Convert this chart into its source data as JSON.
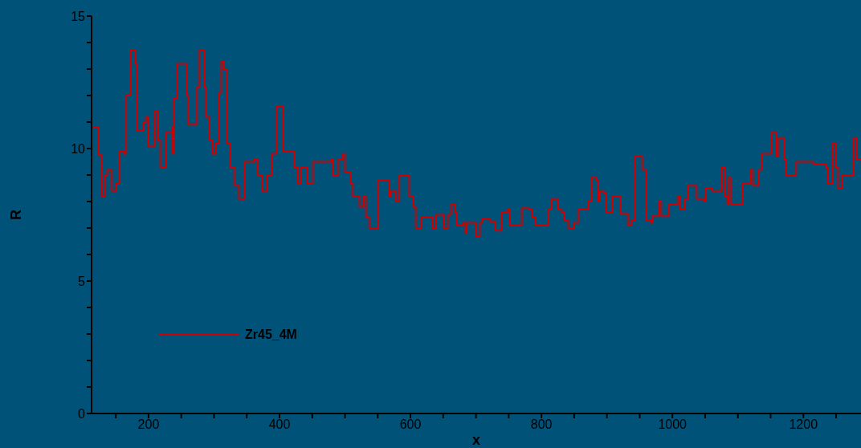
{
  "chart_data": {
    "type": "step",
    "xlabel": "x",
    "ylabel": "R",
    "xlim": [
      113,
      1288
    ],
    "xticks": [
      {
        "value": 150,
        "label": null
      },
      200,
      {
        "value": 250,
        "label": null
      },
      {
        "value": 300,
        "label": null
      },
      {
        "value": 350,
        "label": null
      },
      400,
      {
        "value": 450,
        "label": null
      },
      {
        "value": 500,
        "label": null
      },
      {
        "value": 550,
        "label": null
      },
      600,
      {
        "value": 650,
        "label": null
      },
      {
        "value": 700,
        "label": null
      },
      {
        "value": 750,
        "label": null
      },
      800,
      {
        "value": 850,
        "label": null
      },
      {
        "value": 900,
        "label": null
      },
      {
        "value": 950,
        "label": null
      },
      1000,
      {
        "value": 1050,
        "label": null
      },
      {
        "value": 1100,
        "label": null
      },
      {
        "value": 1150,
        "label": null
      },
      1200,
      {
        "value": 1250,
        "label": null
      }
    ],
    "ylim": [
      0,
      15
    ],
    "yticks": [
      0,
      {
        "value": 1,
        "label": null
      },
      {
        "value": 2,
        "label": null
      },
      {
        "value": 3,
        "label": null
      },
      {
        "value": 4,
        "label": null
      },
      5,
      {
        "value": 6,
        "label": null
      },
      {
        "value": 7,
        "label": null
      },
      {
        "value": 8,
        "label": null
      },
      {
        "value": 9,
        "label": null
      },
      10,
      {
        "value": 11,
        "label": null
      },
      {
        "value": 12,
        "label": null
      },
      {
        "value": 13,
        "label": null
      },
      {
        "value": 14,
        "label": null
      },
      15
    ],
    "grid": false,
    "legend": "bottom left",
    "line_style": "solid",
    "marker": "none",
    "series": [
      {
        "name": "Zr45_4M",
        "color": "#d10000",
        "x": [
          113,
          114,
          124,
          124,
          129,
          134,
          137,
          144,
          150,
          156,
          162,
          166,
          172,
          180,
          182,
          190,
          192,
          196,
          199,
          209,
          210,
          214,
          218,
          226,
          236,
          237,
          238,
          244,
          255,
          258,
          260,
          270,
          274,
          277,
          285,
          287,
          293,
          298,
          303,
          307,
          311,
          315,
          319,
          325,
          331,
          338,
          346,
          362,
          367,
          373,
          381,
          388,
          395,
          401,
          405,
          420,
          422,
          428,
          433,
          442,
          451,
          479,
          481,
          490,
          497,
          500,
          508,
          512,
          522,
          528,
          532,
          537,
          543,
          551,
          564,
          567,
          570,
          578,
          583,
          594,
          598,
          604,
          608,
          616,
          631,
          634,
          639,
          651,
          657,
          662,
          668,
          671,
          680,
          684,
          686,
          700,
          706,
          709,
          721,
          730,
          739,
          748,
          752,
          766,
          770,
          780,
          786,
          791,
          807,
          811,
          815,
          822,
          825,
          831,
          835,
          841,
          847,
          850,
          856,
          868,
          872,
          876,
          884,
          887,
          889,
          895,
          899,
          909,
          917,
          920,
          930,
          932,
          937,
          943,
          951,
          954,
          960,
          967,
          969,
          980,
          983,
          995,
          1003,
          1008,
          1012,
          1019,
          1024,
          1034,
          1037,
          1049,
          1050,
          1061,
          1069,
          1075,
          1080,
          1084,
          1086,
          1089,
          1104,
          1107,
          1116,
          1119,
          1123,
          1132,
          1136,
          1147,
          1151,
          1157,
          1159,
          1162,
          1169,
          1171,
          1173,
          1182,
          1185,
          1189,
          1215,
          1216,
          1234,
          1237,
          1245,
          1249,
          1253,
          1258,
          1259,
          1276,
          1277,
          1281,
          1288
        ],
        "values": [
          10.5,
          10.8,
          10.8,
          9.75,
          8.2,
          9.0,
          9.2,
          8.4,
          8.7,
          9.9,
          9.8,
          12.0,
          13.7,
          13.2,
          10.7,
          10.7,
          11.0,
          11.2,
          10.1,
          10.1,
          11.4,
          10.3,
          9.3,
          10.6,
          10.8,
          9.8,
          11.9,
          13.2,
          13.2,
          12.0,
          10.9,
          10.9,
          12.3,
          13.7,
          12.3,
          11.2,
          10.3,
          9.8,
          10.2,
          12.1,
          13.3,
          13.0,
          10.2,
          9.3,
          8.6,
          8.1,
          9.5,
          9.6,
          9.0,
          8.4,
          9.0,
          9.8,
          11.6,
          11.6,
          9.9,
          9.9,
          9.3,
          8.7,
          9.3,
          8.7,
          9.5,
          9.6,
          9.0,
          9.6,
          9.8,
          9.1,
          8.7,
          8.2,
          7.8,
          8.2,
          7.4,
          7.0,
          7.0,
          8.8,
          8.8,
          8.2,
          8.4,
          8.0,
          9.0,
          9.0,
          8.2,
          7.8,
          7.0,
          7.4,
          7.4,
          7.0,
          7.5,
          7.0,
          7.5,
          7.9,
          7.6,
          7.1,
          7.2,
          6.8,
          7.2,
          6.7,
          7.2,
          7.35,
          7.25,
          6.9,
          7.6,
          7.7,
          7.1,
          7.1,
          7.75,
          7.7,
          7.4,
          7.1,
          7.1,
          7.7,
          8.1,
          8.1,
          7.7,
          7.6,
          7.3,
          7.0,
          7.0,
          7.2,
          7.7,
          7.7,
          8.0,
          8.9,
          8.8,
          8.0,
          8.4,
          8.3,
          7.6,
          8.2,
          8.2,
          7.55,
          7.55,
          7.1,
          7.3,
          9.7,
          9.7,
          9.2,
          7.3,
          7.2,
          7.45,
          8.0,
          7.45,
          7.9,
          7.9,
          8.2,
          7.7,
          8.1,
          8.6,
          8.6,
          8.1,
          8.0,
          8.5,
          8.4,
          8.4,
          9.3,
          8.2,
          7.9,
          8.9,
          7.9,
          7.9,
          8.7,
          8.7,
          9.2,
          8.6,
          9.2,
          9.8,
          9.8,
          10.6,
          10.6,
          9.7,
          10.4,
          10.4,
          9.6,
          9.0,
          9.0,
          9.0,
          9.5,
          9.5,
          9.4,
          9.3,
          8.7,
          10.2,
          9.3,
          8.5,
          8.5,
          9.0,
          9.0,
          10.4,
          9.6,
          9.6
        ]
      }
    ]
  }
}
